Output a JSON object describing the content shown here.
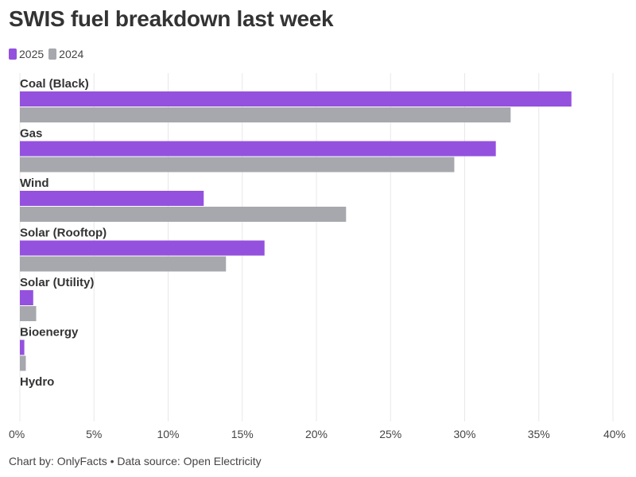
{
  "title": "SWIS fuel breakdown last week",
  "footer": "Chart by: OnlyFacts • Data source: Open Electricity",
  "colors": {
    "series_2025": "#9451de",
    "series_2024": "#a6a8ad",
    "grid": "#e8e8e8",
    "text": "#333333"
  },
  "chart_data": {
    "type": "bar",
    "orientation": "horizontal",
    "categories": [
      "Coal (Black)",
      "Gas",
      "Wind",
      "Solar (Rooftop)",
      "Solar (Utility)",
      "Bioenergy",
      "Hydro"
    ],
    "series": [
      {
        "name": "2025",
        "values": [
          37.2,
          32.1,
          12.4,
          16.5,
          0.9,
          0.3,
          0
        ]
      },
      {
        "name": "2024",
        "values": [
          33.1,
          29.3,
          22.0,
          13.9,
          1.1,
          0.4,
          0
        ]
      }
    ],
    "xlim": [
      0,
      40
    ],
    "x_ticks": [
      0,
      5,
      10,
      15,
      20,
      25,
      30,
      35,
      40
    ],
    "x_tick_labels": [
      "0%",
      "5%",
      "10%",
      "15%",
      "20%",
      "25%",
      "30%",
      "35%",
      "40%"
    ],
    "grid": true,
    "legend": "top-left"
  }
}
